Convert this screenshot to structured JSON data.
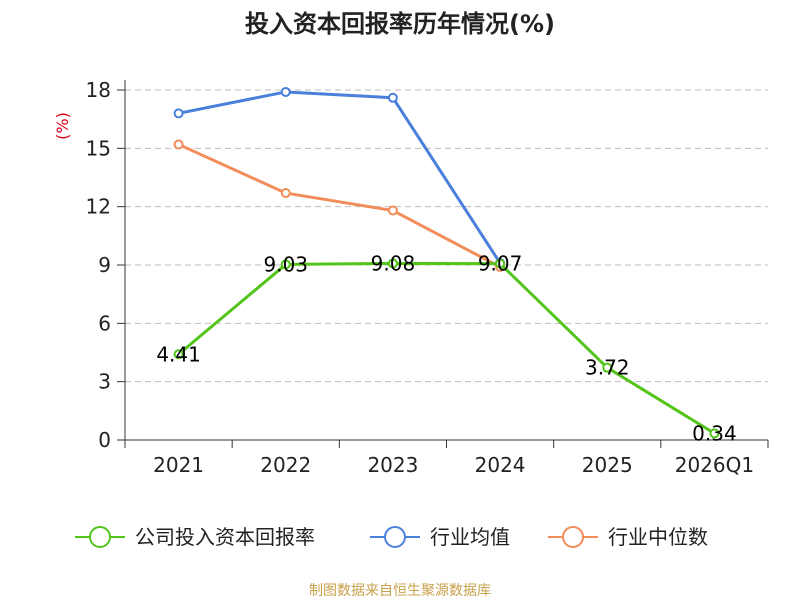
{
  "chart_data": {
    "type": "line",
    "title": "投入资本回报率历年情况(%)",
    "ylabel": "(%)",
    "xlabel": "",
    "categories": [
      "2021",
      "2022",
      "2023",
      "2024",
      "2025",
      "2026Q1"
    ],
    "ylim": [
      0,
      18
    ],
    "yticks": [
      0,
      3,
      6,
      9,
      12,
      15,
      18
    ],
    "grid": true,
    "legend_position": "bottom",
    "series": [
      {
        "name": "公司投入资本回报率",
        "color": "#52c41a",
        "values": [
          4.41,
          9.03,
          9.08,
          9.07,
          3.72,
          0.34
        ],
        "labels": [
          "4.41",
          "9.03",
          "9.08",
          "9.07",
          "3.72",
          "0.34"
        ]
      },
      {
        "name": "行业均值",
        "color": "#4a7fdb",
        "values": [
          16.8,
          17.9,
          17.6,
          9.1,
          null,
          null
        ]
      },
      {
        "name": "行业中位数",
        "color": "#f28c5a",
        "values": [
          15.2,
          12.7,
          11.8,
          8.9,
          null,
          null
        ]
      }
    ],
    "source": "制图数据来自恒生聚源数据库"
  }
}
